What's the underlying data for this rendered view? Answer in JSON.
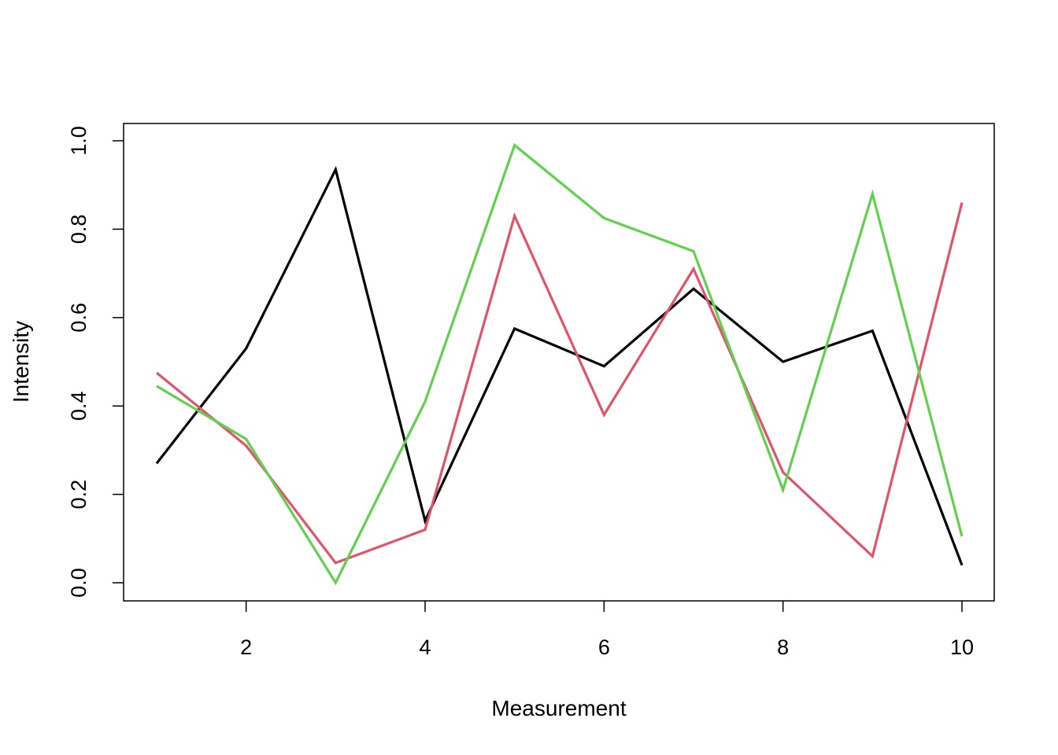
{
  "chart_data": {
    "type": "line",
    "title": "",
    "xlabel": "Measurement",
    "ylabel": "Intensity",
    "xlim": [
      1,
      10
    ],
    "ylim": [
      0,
      1
    ],
    "x": [
      1,
      2,
      3,
      4,
      5,
      6,
      7,
      8,
      9,
      10
    ],
    "x_ticks": [
      2,
      4,
      6,
      8,
      10
    ],
    "y_ticks": [
      0.0,
      0.2,
      0.4,
      0.6,
      0.8,
      1.0
    ],
    "y_tick_labels": [
      "0.0",
      "0.2",
      "0.4",
      "0.6",
      "0.8",
      "1.0"
    ],
    "grid": false,
    "legend": "none",
    "series": [
      {
        "color": "#000000",
        "values": [
          0.27,
          0.53,
          0.935,
          0.14,
          0.575,
          0.49,
          0.665,
          0.5,
          0.57,
          0.04
        ]
      },
      {
        "color": "#DF536B",
        "values": [
          0.475,
          0.31,
          0.045,
          0.12,
          0.83,
          0.38,
          0.71,
          0.25,
          0.06,
          0.86
        ]
      },
      {
        "color": "#61D04F",
        "values": [
          0.445,
          0.325,
          0.0,
          0.41,
          0.99,
          0.825,
          0.75,
          0.21,
          0.88,
          0.105
        ]
      }
    ]
  }
}
